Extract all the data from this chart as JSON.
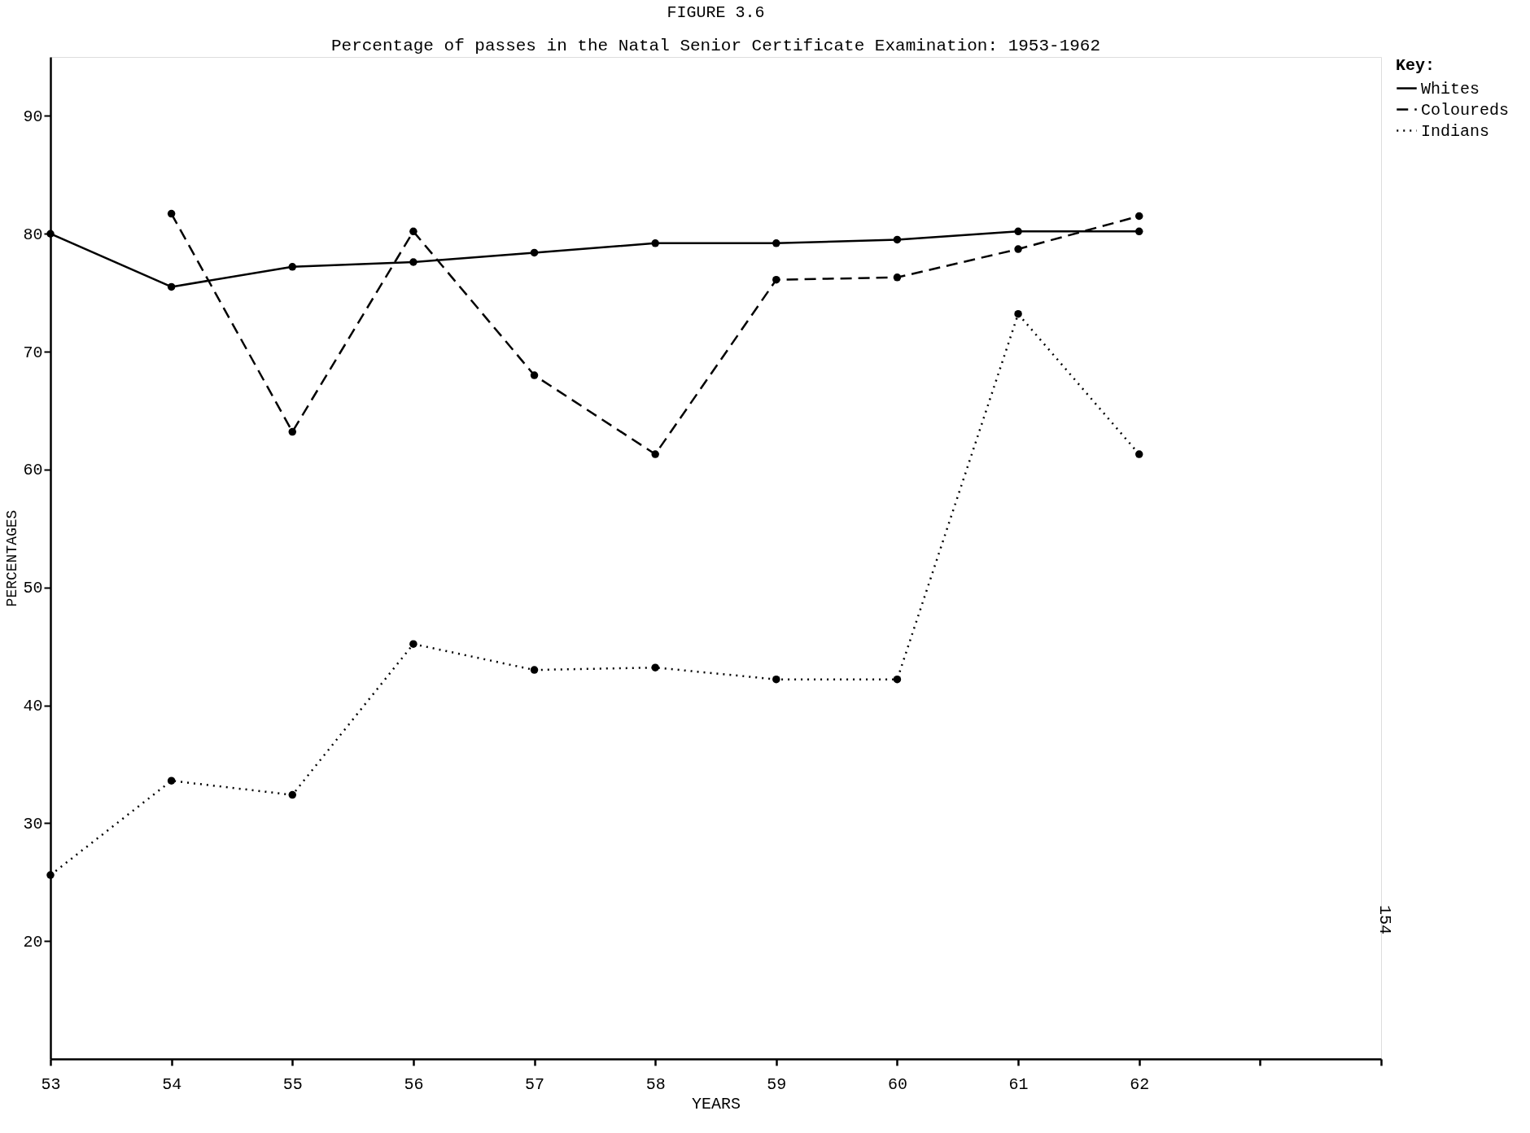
{
  "chart_data": {
    "type": "line",
    "title": "FIGURE 3.6",
    "subtitle": "Percentage of passes in the Natal Senior Certificate Examination:  1953-1962",
    "xlabel": "YEARS",
    "ylabel": "PERCENTAGES",
    "legend_title": "Key:",
    "x": [
      53,
      54,
      55,
      56,
      57,
      58,
      59,
      60,
      61,
      62
    ],
    "series": [
      {
        "name": "Whites",
        "color": "#000000",
        "line_style": "solid",
        "values": [
          80.0,
          75.5,
          77.2,
          77.6,
          78.4,
          79.2,
          79.2,
          79.5,
          80.2,
          80.2
        ]
      },
      {
        "name": "Coloureds",
        "color": "#000000",
        "line_style": "dashed",
        "values": [
          null,
          81.7,
          63.2,
          80.2,
          68.0,
          61.3,
          76.1,
          76.3,
          78.7,
          81.5
        ]
      },
      {
        "name": "Indians",
        "color": "#000000",
        "line_style": "dotted",
        "values": [
          25.6,
          33.6,
          32.4,
          45.2,
          43.0,
          43.2,
          42.2,
          42.2,
          73.2,
          61.3
        ]
      }
    ],
    "xlim": [
      53,
      64
    ],
    "xticks": [
      53,
      54,
      55,
      56,
      57,
      58,
      59,
      60,
      61,
      62,
      {
        "value": 63,
        "label": null
      },
      {
        "value": 64,
        "label": null
      }
    ],
    "ylim": [
      10,
      95
    ],
    "yticks": [
      20,
      30,
      40,
      50,
      60,
      70,
      80,
      90
    ],
    "annotations": [
      "154"
    ],
    "marker": "circle",
    "grid": false,
    "legend": "right"
  }
}
